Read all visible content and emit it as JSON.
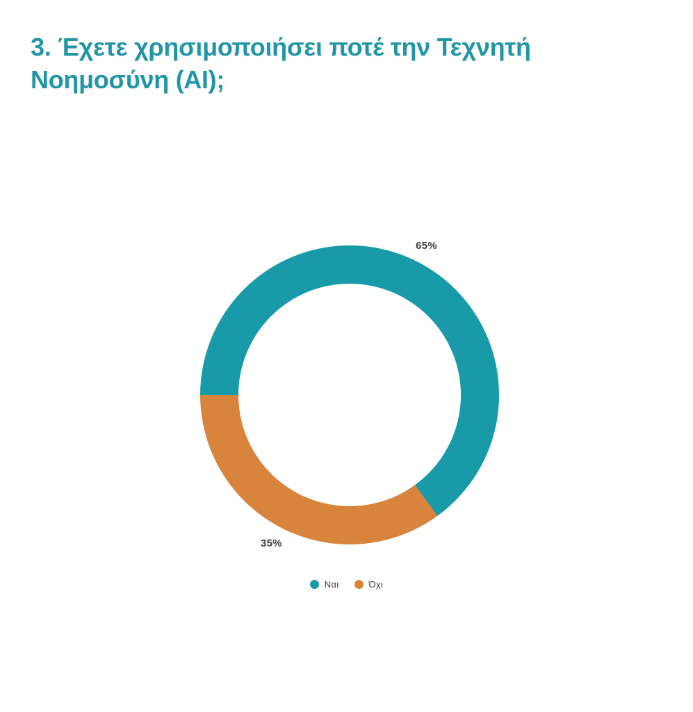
{
  "page": {
    "background_color": "#ffffff"
  },
  "title": {
    "text": "3. Έχετε χρησιμοποιήσει ποτέ την Τεχνητή Νοημοσύνη (AI);",
    "line1": "3. Έχετε χρησιμοποιήσει ποτέ την Τεχνητή",
    "line2": "Νοημοσύνη (AI);",
    "color": "#2296a6"
  },
  "chart_data": {
    "type": "pie",
    "subtype": "donut",
    "title": "3. Έχετε χρησιμοποιήσει ποτέ την Τεχνητή Νοημοσύνη (AI);",
    "categories": [
      "Ναι",
      "Όχι"
    ],
    "values": [
      65,
      35
    ],
    "slice_labels": [
      "65%",
      "35%"
    ],
    "colors": [
      "#189aa8",
      "#d8843c"
    ],
    "start_angle_deg": 270,
    "direction": "clockwise",
    "inner_radius_ratio": 0.744,
    "legend_position": "bottom",
    "label_color": "#3d3d3d",
    "hole_color": "#ffffff"
  }
}
